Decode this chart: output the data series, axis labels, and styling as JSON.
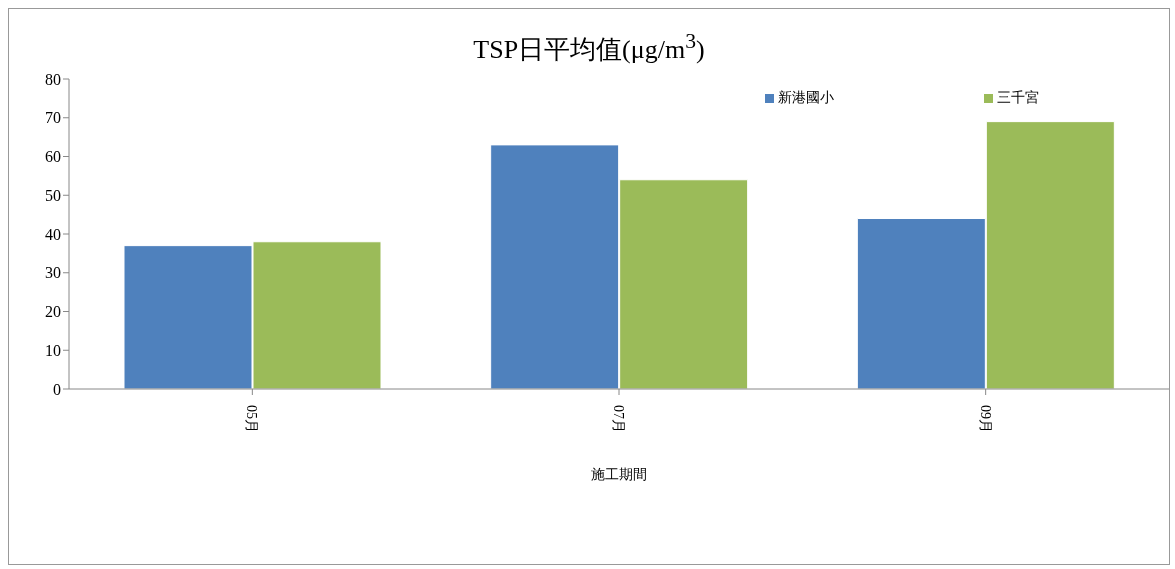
{
  "chart_data": {
    "type": "bar",
    "title": "TSP日平均值(μg/m$^{3}$)",
    "xlabel": "施工期間",
    "categories": [
      "05月",
      "07月",
      "09月"
    ],
    "series": [
      {
        "name": "新港國小",
        "color": "#4f81bd",
        "values": [
          37,
          63,
          44
        ]
      },
      {
        "name": "三千宮",
        "color": "#9bbb59",
        "values": [
          38,
          54,
          69
        ]
      }
    ],
    "ylim": [
      0,
      80
    ],
    "yticks": [
      0,
      10,
      20,
      30,
      40,
      50,
      60,
      70,
      80
    ],
    "legend": "top right"
  }
}
